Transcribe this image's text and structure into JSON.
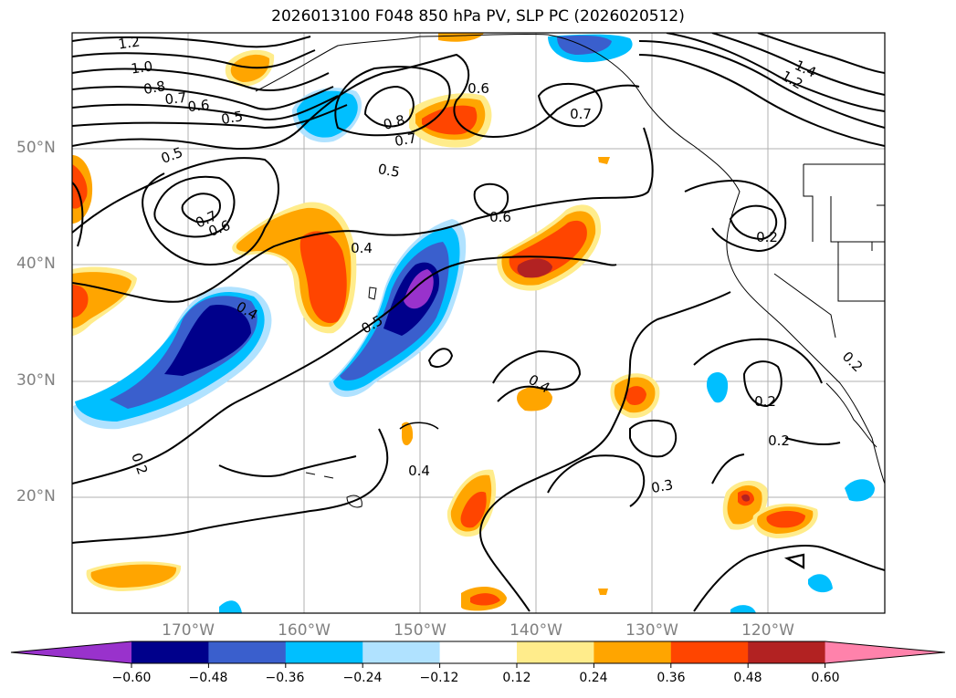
{
  "title": "2026013100 F048 850 hPa PV, SLP PC (2026020512)",
  "map": {
    "type": "contour-map",
    "field_filled": "850 hPa PV anomaly",
    "field_contour": "SLP PC",
    "lon_range": [
      -180,
      -110
    ],
    "lat_range": [
      10,
      60
    ],
    "gridlines": true,
    "lat_labels": [
      "50°N",
      "40°N",
      "30°N",
      "20°N"
    ],
    "lon_labels": [
      "170°W",
      "160°W",
      "150°W",
      "140°W",
      "130°W",
      "120°W"
    ],
    "contour_labels": [
      "1.2",
      "1.0",
      "0.8",
      "0.7",
      "0.6",
      "0.5",
      "0.5",
      "0.7",
      "0.6",
      "0.5",
      "0.8",
      "0.7",
      "0.6",
      "0.7",
      "0.4",
      "0.6",
      "0.4",
      "0.5",
      "0.2",
      "0.4",
      "0.2",
      "0.4",
      "0.3",
      "0.2",
      "0.2",
      "1.4",
      "1.2",
      "0.2"
    ]
  },
  "colorbar": {
    "ticks": [
      "−0.60",
      "−0.48",
      "−0.36",
      "−0.24",
      "−0.12",
      "0.12",
      "0.24",
      "0.36",
      "0.48",
      "0.60"
    ],
    "colors": [
      "#9932cc",
      "#00008b",
      "#3a5fcd",
      "#00bfff",
      "#b0e2ff",
      "#ffffff",
      "#ffec8b",
      "#ffa500",
      "#ff4500",
      "#b22222",
      "#ff82ab"
    ]
  }
}
